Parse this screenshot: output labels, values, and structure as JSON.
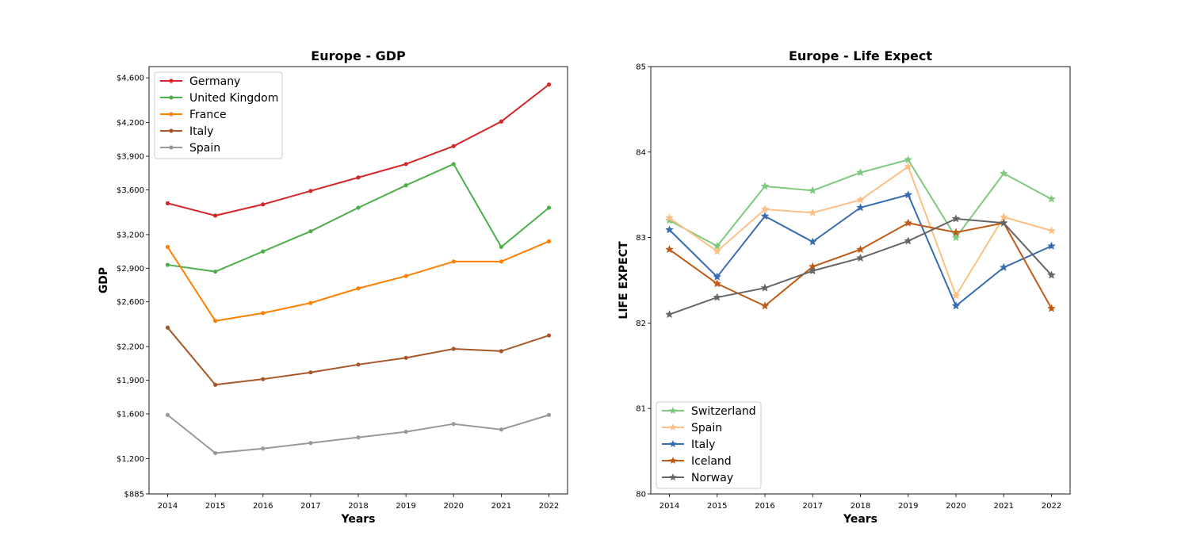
{
  "chart_data": [
    {
      "type": "line",
      "title": "Europe - GDP",
      "xlabel": "Years",
      "ylabel": "GDP",
      "x": [
        "2014",
        "2015",
        "2016",
        "2017",
        "2018",
        "2019",
        "2020",
        "2021",
        "2022"
      ],
      "yticks": [
        885,
        1200,
        1600,
        1900,
        2200,
        2600,
        2900,
        3200,
        3600,
        3900,
        4200,
        4600
      ],
      "ytick_labels": [
        "$885",
        "$1,200",
        "$1,600",
        "$1,900",
        "$2,200",
        "$2,600",
        "$2,900",
        "$3,200",
        "$3,600",
        "$3,900",
        "$4,200",
        "$4,600"
      ],
      "ylim": [
        885,
        4700
      ],
      "legend_position": "top-left",
      "grid": false,
      "marker": "circle",
      "series": [
        {
          "name": "Germany",
          "color": "#d62728",
          "values": [
            3480,
            3370,
            3470,
            3590,
            3710,
            3830,
            3990,
            4210,
            4540
          ]
        },
        {
          "name": "United Kingdom",
          "color": "#4daf4a",
          "values": [
            2930,
            2870,
            3050,
            3230,
            3440,
            3640,
            3830,
            3090,
            3440
          ]
        },
        {
          "name": "France",
          "color": "#ff7f00",
          "values": [
            3090,
            2430,
            2500,
            2590,
            2720,
            2830,
            2960,
            2960,
            3140
          ]
        },
        {
          "name": "Italy",
          "color": "#a65628",
          "values": [
            2370,
            1860,
            1910,
            1970,
            2040,
            2100,
            2180,
            2160,
            2300
          ]
        },
        {
          "name": "Spain",
          "color": "#999999",
          "values": [
            1590,
            1250,
            1290,
            1340,
            1390,
            1440,
            1510,
            1460,
            1590
          ]
        }
      ]
    },
    {
      "type": "line",
      "title": "Europe - Life Expect",
      "xlabel": "Years",
      "ylabel": "LIFE EXPECT",
      "x": [
        "2014",
        "2015",
        "2016",
        "2017",
        "2018",
        "2019",
        "2020",
        "2021",
        "2022"
      ],
      "yticks": [
        80,
        81,
        82,
        83,
        84,
        85
      ],
      "ytick_labels": [
        "80",
        "81",
        "82",
        "83",
        "84",
        "85"
      ],
      "ylim": [
        80,
        85
      ],
      "legend_position": "bottom-left",
      "grid": false,
      "marker": "star",
      "series": [
        {
          "name": "Switzerland",
          "color": "#7fc97f",
          "values": [
            83.2,
            82.9,
            83.6,
            83.55,
            83.76,
            83.91,
            83.0,
            83.75,
            83.45
          ]
        },
        {
          "name": "Spain",
          "color": "#fdc086",
          "values": [
            83.23,
            82.84,
            83.33,
            83.29,
            83.44,
            83.83,
            82.32,
            83.24,
            83.08
          ]
        },
        {
          "name": "Italy",
          "color": "#386cb0",
          "values": [
            83.09,
            82.54,
            83.25,
            82.95,
            83.35,
            83.5,
            82.2,
            82.65,
            82.9
          ]
        },
        {
          "name": "Iceland",
          "color": "#bf5b17",
          "values": [
            82.86,
            82.46,
            82.2,
            82.66,
            82.86,
            83.17,
            83.06,
            83.17,
            82.17
          ]
        },
        {
          "name": "Norway",
          "color": "#666666",
          "values": [
            82.1,
            82.3,
            82.41,
            82.61,
            82.76,
            82.96,
            83.22,
            83.17,
            82.56
          ]
        }
      ]
    }
  ]
}
